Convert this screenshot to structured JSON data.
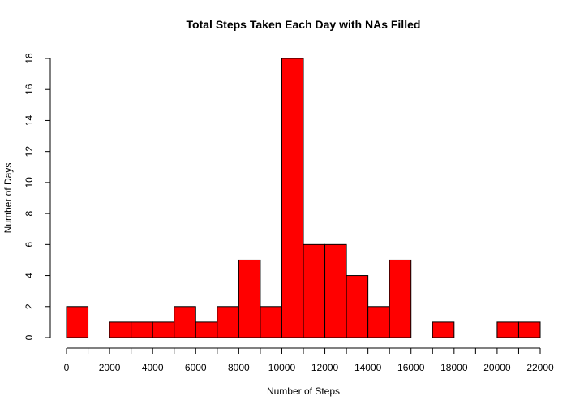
{
  "chart_data": {
    "type": "bar",
    "title": "Total Steps Taken Each Day with NAs Filled",
    "xlabel": "Number of Steps",
    "ylabel": "Number of Days",
    "bar_color": "#ff0000",
    "bin_width": 1000,
    "bins": [
      {
        "start": 0,
        "end": 1000,
        "count": 2
      },
      {
        "start": 1000,
        "end": 2000,
        "count": 0
      },
      {
        "start": 2000,
        "end": 3000,
        "count": 1
      },
      {
        "start": 3000,
        "end": 4000,
        "count": 1
      },
      {
        "start": 4000,
        "end": 5000,
        "count": 1
      },
      {
        "start": 5000,
        "end": 6000,
        "count": 2
      },
      {
        "start": 6000,
        "end": 7000,
        "count": 1
      },
      {
        "start": 7000,
        "end": 8000,
        "count": 2
      },
      {
        "start": 8000,
        "end": 9000,
        "count": 5
      },
      {
        "start": 9000,
        "end": 10000,
        "count": 2
      },
      {
        "start": 10000,
        "end": 11000,
        "count": 18
      },
      {
        "start": 11000,
        "end": 12000,
        "count": 6
      },
      {
        "start": 12000,
        "end": 13000,
        "count": 6
      },
      {
        "start": 13000,
        "end": 14000,
        "count": 4
      },
      {
        "start": 14000,
        "end": 15000,
        "count": 2
      },
      {
        "start": 15000,
        "end": 16000,
        "count": 5
      },
      {
        "start": 16000,
        "end": 17000,
        "count": 0
      },
      {
        "start": 17000,
        "end": 18000,
        "count": 1
      },
      {
        "start": 18000,
        "end": 19000,
        "count": 0
      },
      {
        "start": 19000,
        "end": 20000,
        "count": 0
      },
      {
        "start": 20000,
        "end": 21000,
        "count": 1
      },
      {
        "start": 21000,
        "end": 22000,
        "count": 1
      }
    ],
    "xlim": [
      0,
      22000
    ],
    "ylim": [
      0,
      18
    ],
    "x_ticks": [
      0,
      1000,
      2000,
      3000,
      4000,
      5000,
      6000,
      7000,
      8000,
      9000,
      10000,
      11000,
      12000,
      13000,
      14000,
      15000,
      16000,
      17000,
      18000,
      19000,
      20000,
      21000,
      22000
    ],
    "x_tick_labels": [
      "0",
      "2000",
      "4000",
      "6000",
      "8000",
      "10000",
      "12000",
      "14000",
      "16000",
      "18000",
      "20000",
      "22000"
    ],
    "y_ticks": [
      0,
      2,
      4,
      6,
      8,
      10,
      12,
      14,
      16,
      18
    ],
    "y_tick_labels": [
      "0",
      "2",
      "4",
      "6",
      "8",
      "10",
      "12",
      "14",
      "16",
      "18"
    ],
    "grid": false,
    "legend": "none"
  }
}
